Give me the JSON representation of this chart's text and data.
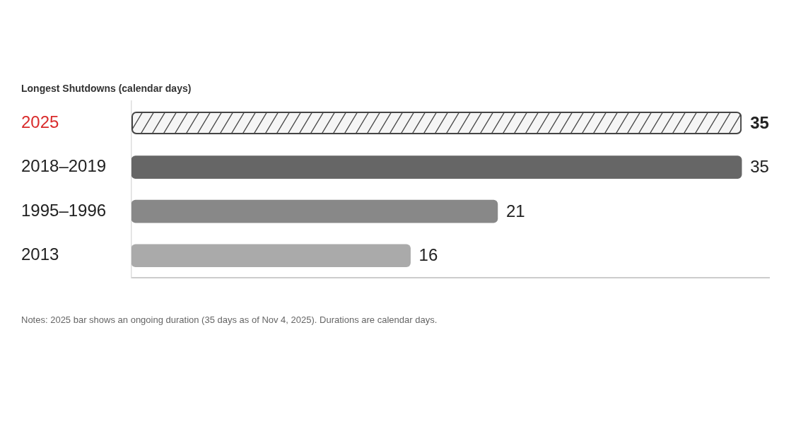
{
  "chart_data": {
    "type": "bar",
    "orientation": "horizontal",
    "title": "Longest Shutdowns (calendar days)",
    "categories": [
      "2025",
      "2018–2019",
      "1995–1996",
      "2013"
    ],
    "values": [
      35,
      35,
      21,
      16
    ],
    "colors": [
      "#f5f5f5",
      "#666666",
      "#888888",
      "#aaaaaa"
    ],
    "data_labels": true,
    "tick_labels": "y",
    "annotations": [
      "Notes: 2025 bar shows an ongoing duration (35 days as of Nov 4, 2025). Durations are calendar days."
    ]
  }
}
